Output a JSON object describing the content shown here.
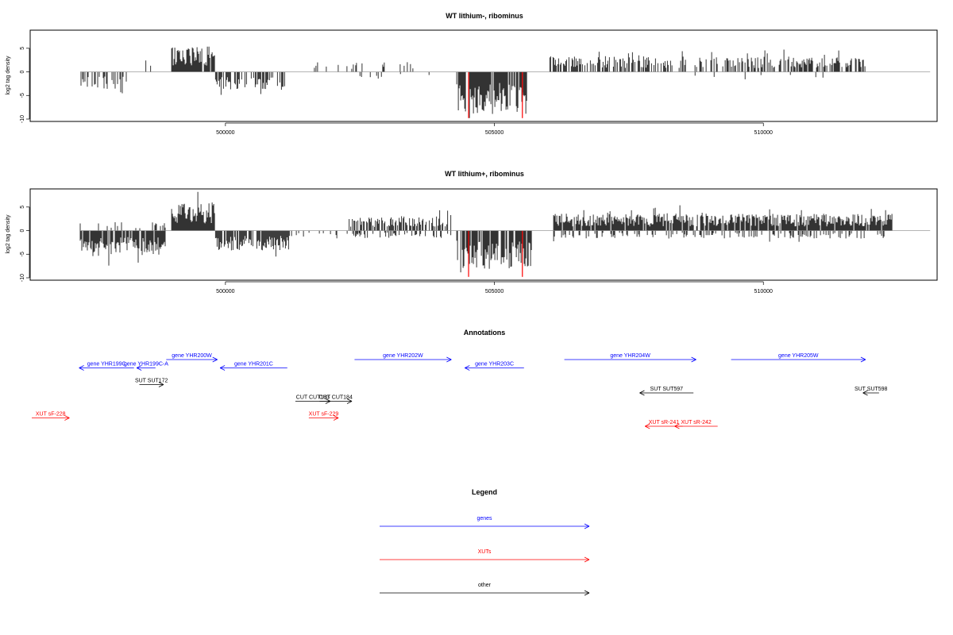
{
  "panels": {
    "top_title": "WT lithium-, ribominus",
    "mid_title": "WT lithium+, ribominus",
    "ylabel": "log2 tag density"
  },
  "annotations_title": "Annotations",
  "legend": {
    "title": "Legend",
    "items": [
      {
        "label": "genes",
        "color": "#0000ff"
      },
      {
        "label": "XUTs",
        "color": "#ff0000"
      },
      {
        "label": "other",
        "color": "#000000"
      }
    ]
  },
  "chart_data": [
    {
      "type": "bar",
      "title": "WT lithium-, ribominus",
      "ylabel": "log2 tag density",
      "xlim": [
        496400,
        513200
      ],
      "ylim": [
        -10,
        8.5
      ],
      "xticks": [
        500000,
        505000,
        510000
      ],
      "yticks": [
        -10,
        -5,
        0,
        5
      ],
      "xtick_labels": [
        "500000",
        "505000",
        "510000"
      ],
      "ytick_labels": [
        "-10",
        "-5",
        "0",
        "5"
      ],
      "highlight_color": "#ff0000",
      "segments": [
        {
          "start": 497300,
          "end": 498200,
          "sign": -1,
          "level": 3.0,
          "density": 0.35
        },
        {
          "start": 498300,
          "end": 499000,
          "sign": 1,
          "level": 1.5,
          "density": 0.1
        },
        {
          "start": 499000,
          "end": 499800,
          "sign": 1,
          "level": 4.5,
          "density": 0.95
        },
        {
          "start": 499800,
          "end": 501100,
          "sign": -1,
          "level": 3.2,
          "density": 0.55
        },
        {
          "start": 501300,
          "end": 503500,
          "sign": 1,
          "level": 1.8,
          "density": 0.12
        },
        {
          "start": 502500,
          "end": 503800,
          "sign": -1,
          "level": 1.2,
          "density": 0.08
        },
        {
          "start": 504300,
          "end": 505600,
          "sign": -1,
          "level": 7.5,
          "density": 0.9
        },
        {
          "start": 506000,
          "end": 508300,
          "sign": 1,
          "level": 2.8,
          "density": 0.55
        },
        {
          "start": 508300,
          "end": 509600,
          "sign": 1,
          "level": 2.6,
          "density": 0.35
        },
        {
          "start": 509600,
          "end": 511900,
          "sign": 1,
          "level": 2.7,
          "density": 0.55
        },
        {
          "start": 506500,
          "end": 511500,
          "sign": -1,
          "level": 1.5,
          "density": 0.03
        }
      ],
      "highlights": [
        {
          "x": 504520,
          "value": -9.8
        },
        {
          "x": 505520,
          "value": -9.8
        }
      ]
    },
    {
      "type": "bar",
      "title": "WT lithium+, ribominus",
      "ylabel": "log2 tag density",
      "xlim": [
        496400,
        513200
      ],
      "ylim": [
        -10,
        8.5
      ],
      "xticks": [
        500000,
        505000,
        510000
      ],
      "yticks": [
        -10,
        -5,
        0,
        5
      ],
      "xtick_labels": [
        "500000",
        "505000",
        "510000"
      ],
      "ytick_labels": [
        "-10",
        "-5",
        "0",
        "5"
      ],
      "highlight_color": "#ff0000",
      "segments": [
        {
          "start": 497300,
          "end": 498900,
          "sign": -1,
          "level": 4.5,
          "density": 0.85
        },
        {
          "start": 497300,
          "end": 498900,
          "sign": 1,
          "level": 1.5,
          "density": 0.2
        },
        {
          "start": 499000,
          "end": 499800,
          "sign": 1,
          "level": 5.0,
          "density": 1.0
        },
        {
          "start": 499800,
          "end": 501200,
          "sign": -1,
          "level": 3.5,
          "density": 0.85
        },
        {
          "start": 501200,
          "end": 502500,
          "sign": -1,
          "level": 1.2,
          "density": 0.15
        },
        {
          "start": 502300,
          "end": 504200,
          "sign": 1,
          "level": 2.6,
          "density": 0.65
        },
        {
          "start": 502300,
          "end": 504200,
          "sign": -1,
          "level": 1.4,
          "density": 0.25
        },
        {
          "start": 504300,
          "end": 505700,
          "sign": -1,
          "level": 7.0,
          "density": 0.85
        },
        {
          "start": 506100,
          "end": 512400,
          "sign": 1,
          "level": 3.0,
          "density": 0.9
        },
        {
          "start": 506100,
          "end": 512400,
          "sign": -1,
          "level": 1.4,
          "density": 0.25
        }
      ],
      "highlights": [
        {
          "x": 504520,
          "value": -9.8
        },
        {
          "x": 505520,
          "value": -9.8
        }
      ]
    }
  ],
  "features": [
    {
      "label": "gene YHR199C",
      "type": "gene",
      "strand": "-",
      "start": 497280,
      "end": 498300,
      "row": 1
    },
    {
      "label": "gene YHR199C-A",
      "type": "gene",
      "strand": "-",
      "start": 498350,
      "end": 498700,
      "row": 1
    },
    {
      "label": "gene YHR200W",
      "type": "gene",
      "strand": "+",
      "start": 498900,
      "end": 499850,
      "row": 0
    },
    {
      "label": "gene YHR201C",
      "type": "gene",
      "strand": "-",
      "start": 499900,
      "end": 501150,
      "row": 1
    },
    {
      "label": "gene YHR202W",
      "type": "gene",
      "strand": "+",
      "start": 502400,
      "end": 504200,
      "row": 0
    },
    {
      "label": "gene YHR203C",
      "type": "gene",
      "strand": "-",
      "start": 504450,
      "end": 505550,
      "row": 1
    },
    {
      "label": "gene YHR204W",
      "type": "gene",
      "strand": "+",
      "start": 506300,
      "end": 508750,
      "row": 0
    },
    {
      "label": "gene YHR205W",
      "type": "gene",
      "strand": "+",
      "start": 509400,
      "end": 511900,
      "row": 0
    },
    {
      "label": "SUT SUT172",
      "type": "other",
      "strand": "+",
      "start": 498400,
      "end": 498850,
      "row": 3
    },
    {
      "label": "CUT CUT183",
      "type": "other",
      "strand": "+",
      "start": 501300,
      "end": 501950,
      "row": 5
    },
    {
      "label": "CUT CUT184",
      "type": "other",
      "strand": "+",
      "start": 501750,
      "end": 502350,
      "row": 5
    },
    {
      "label": "SUT SUT597",
      "type": "other",
      "strand": "-",
      "start": 507700,
      "end": 508700,
      "row": 4
    },
    {
      "label": "SUT SUT598",
      "type": "other",
      "strand": "-",
      "start": 511850,
      "end": 512150,
      "row": 4
    },
    {
      "label": "XUT sF-228",
      "type": "XUT",
      "strand": "+",
      "start": 496400,
      "end": 497100,
      "row": 7
    },
    {
      "label": "XUT sF-229",
      "type": "XUT",
      "strand": "+",
      "start": 501550,
      "end": 502100,
      "row": 7
    },
    {
      "label": "XUT sR-241",
      "type": "XUT",
      "strand": "-",
      "start": 507800,
      "end": 508500,
      "row": 8
    },
    {
      "label": "XUT sR-242",
      "type": "XUT",
      "strand": "-",
      "start": 508350,
      "end": 509150,
      "row": 8
    }
  ]
}
